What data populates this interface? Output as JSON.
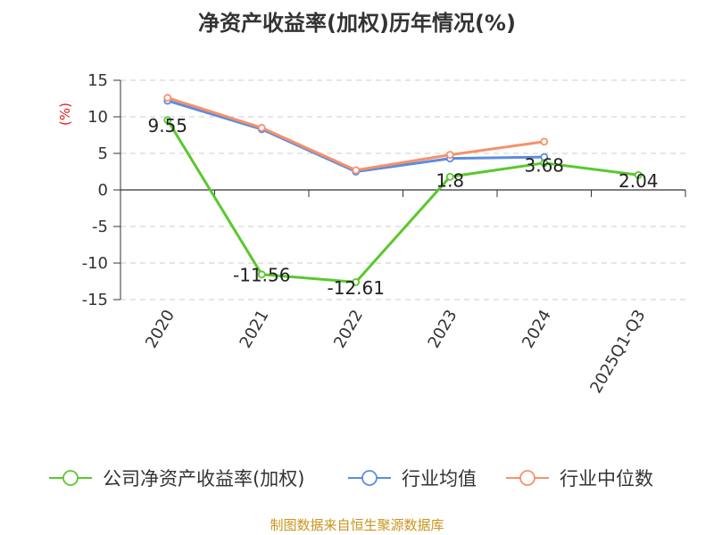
{
  "chart_data": {
    "type": "line",
    "title": "净资产收益率(加权)历年情况(%)",
    "ylabel": "(%)",
    "xlabel": "",
    "categories": [
      "2020",
      "2021",
      "2022",
      "2023",
      "2024",
      "2025Q1-Q3"
    ],
    "ylim": [
      -15,
      15
    ],
    "yticks": [
      15,
      10,
      5,
      0,
      -5,
      -10,
      -15
    ],
    "grid": true,
    "legend_position": "bottom",
    "series": [
      {
        "name": "公司净资产收益率(加权)",
        "color": "#5ac82d",
        "values": [
          9.55,
          -11.56,
          -12.61,
          1.8,
          3.68,
          2.04
        ],
        "labels": [
          "9.55",
          "-11.56",
          "-12.61",
          "1.8",
          "3.68",
          "2.04"
        ]
      },
      {
        "name": "行业均值",
        "color": "#5b8ce0",
        "values": [
          12.2,
          8.3,
          2.5,
          4.3,
          4.5,
          null
        ]
      },
      {
        "name": "行业中位数",
        "color": "#f5916a",
        "values": [
          12.6,
          8.5,
          2.7,
          4.8,
          6.6,
          null
        ]
      }
    ]
  },
  "source_note": "制图数据来自恒生聚源数据库"
}
